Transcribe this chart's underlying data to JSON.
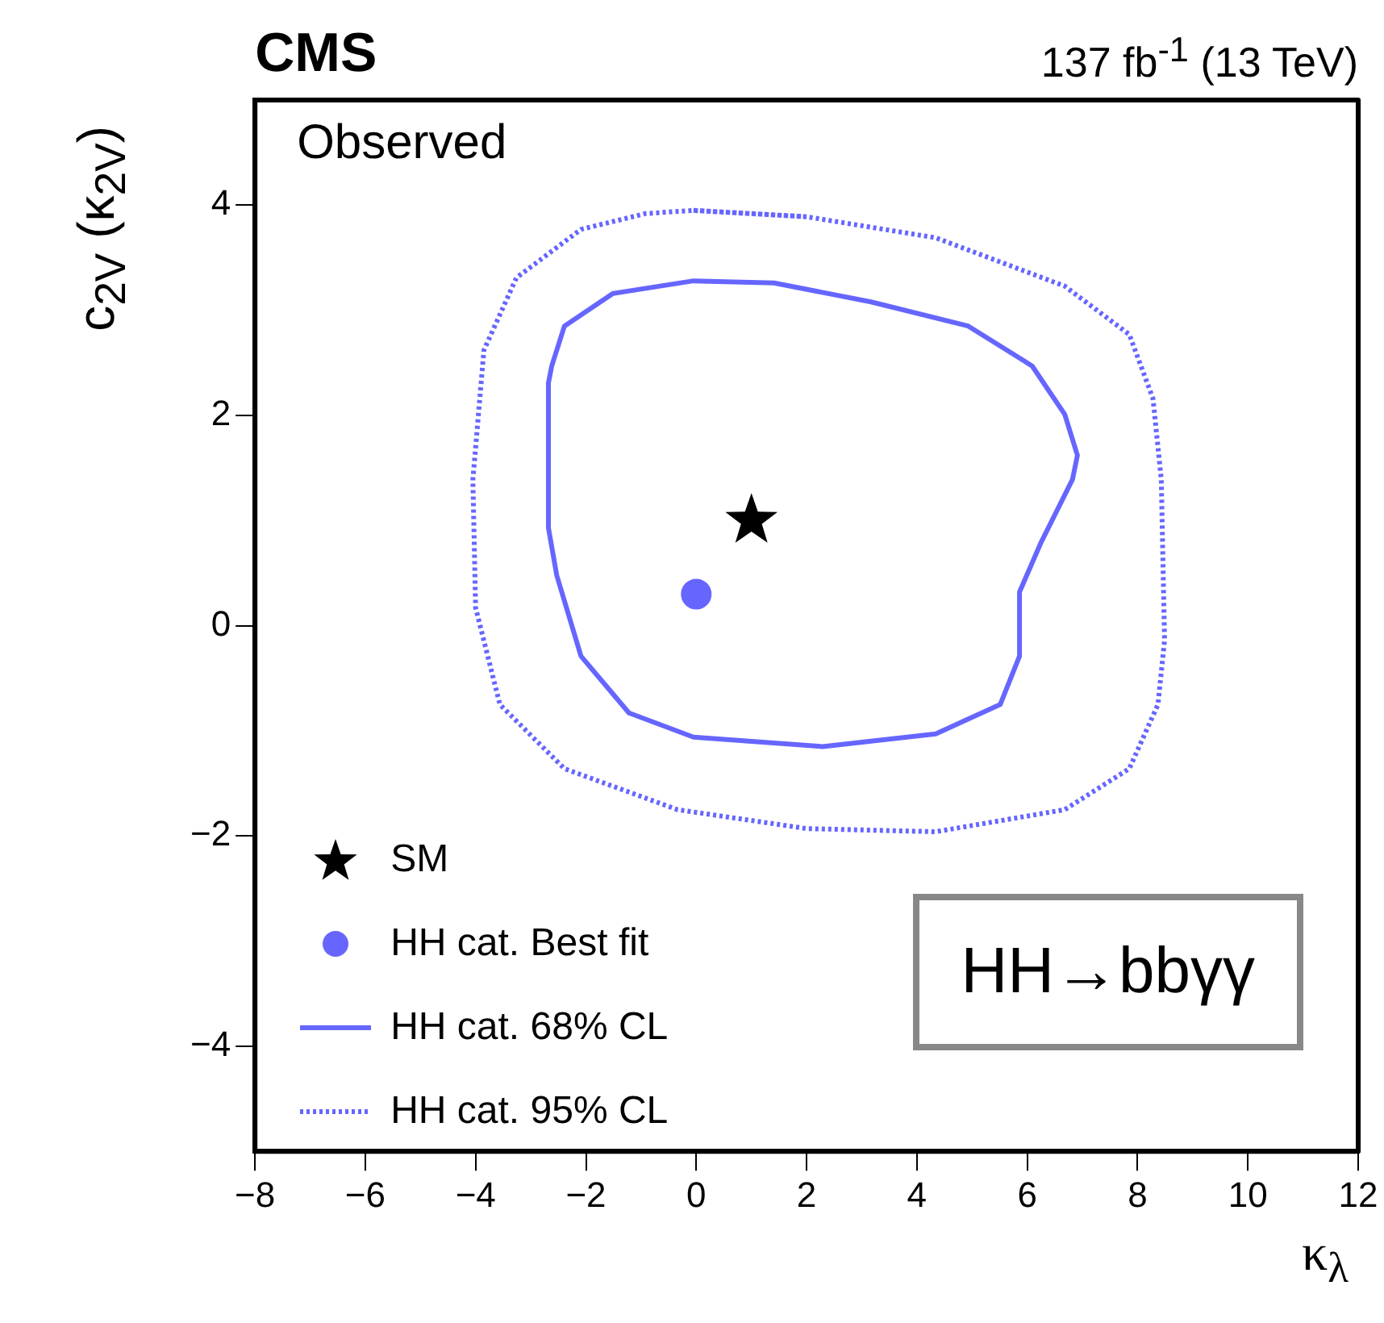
{
  "chart_data": {
    "type": "line",
    "title": "CMS",
    "subtitle": "137 fb$^{-1}$ (13 TeV)",
    "xlabel": "κ$_{λ}$",
    "ylabel": "c$_{2V}$ (κ$_{2V}$)",
    "annotations": [
      "Observed",
      "HH→bbγγ"
    ],
    "xlim": [
      -8,
      12
    ],
    "ylim": [
      -5,
      5
    ],
    "xticks": [
      -8,
      -6,
      -4,
      -2,
      0,
      2,
      4,
      6,
      8,
      10,
      12
    ],
    "yticks": [
      -4,
      -2,
      0,
      2,
      4
    ],
    "grid": false,
    "legend": "bottom left",
    "series": [
      {
        "name": "SM",
        "type": "scatter",
        "marker": "star",
        "color": "#000000",
        "x": [
          1
        ],
        "values": [
          1
        ]
      },
      {
        "name": "HH cat. Best fit",
        "type": "scatter",
        "marker": "circle",
        "color": "#6666ff",
        "x": [
          0
        ],
        "values": [
          0.3
        ]
      },
      {
        "name": "HH cat. 68% CL",
        "type": "line",
        "line_style": "solid",
        "color": "#6666ff",
        "x": [
          -0.05,
          1.41,
          3.17,
          4.93,
          6.09,
          6.68,
          6.91,
          6.82,
          6.24,
          5.86,
          5.86,
          5.51,
          4.34,
          2.29,
          -0.05,
          -1.22,
          -2.09,
          -2.53,
          -2.68,
          -2.68,
          -2.62,
          -2.39,
          -1.51,
          -0.05,
          1.41
        ],
        "values": [
          3.28,
          3.26,
          3.08,
          2.85,
          2.47,
          2.01,
          1.62,
          1.39,
          0.78,
          0.32,
          -0.29,
          -0.75,
          -1.03,
          -1.15,
          -1.06,
          -0.83,
          -0.29,
          0.48,
          0.93,
          2.31,
          2.47,
          2.85,
          3.16,
          3.28,
          3.26
        ]
      },
      {
        "name": "HH cat. 95% CL",
        "type": "line",
        "line_style": "dotted",
        "color": "#6666ff",
        "x": [
          -0.05,
          2.0,
          4.34,
          6.68,
          7.85,
          8.28,
          8.43,
          8.49,
          8.37,
          7.85,
          6.68,
          4.34,
          2.0,
          -0.34,
          -2.39,
          -3.56,
          -4.0,
          -4.05,
          -3.85,
          -3.26,
          -2.09,
          -0.92,
          -0.05,
          2.0
        ],
        "values": [
          3.95,
          3.89,
          3.69,
          3.23,
          2.77,
          2.16,
          1.39,
          -0.14,
          -0.75,
          -1.36,
          -1.75,
          -1.96,
          -1.93,
          -1.75,
          -1.36,
          -0.75,
          0.17,
          1.39,
          2.62,
          3.31,
          3.77,
          3.92,
          3.95,
          3.89
        ]
      }
    ]
  }
}
